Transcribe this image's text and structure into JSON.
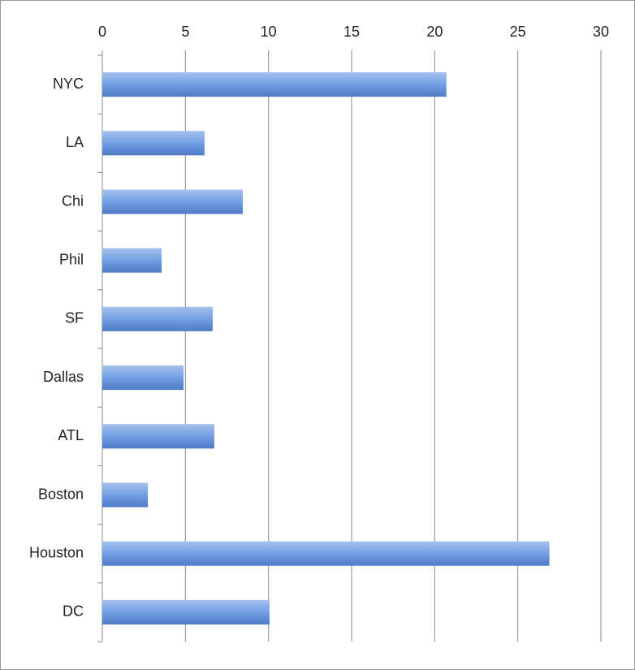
{
  "chart_data": {
    "type": "bar",
    "orientation": "horizontal",
    "categories": [
      "NYC",
      "LA",
      "Chi",
      "Phil",
      "SF",
      "Dallas",
      "ATL",
      "Boston",
      "Houston",
      "DC"
    ],
    "values": [
      20.7,
      6.15,
      8.45,
      3.57,
      6.64,
      4.89,
      6.74,
      2.74,
      26.9,
      10.06
    ],
    "color": "#5a8ee0",
    "xlim": [
      0,
      30
    ],
    "xticks": [
      0,
      5,
      10,
      15,
      20,
      25,
      30
    ],
    "grid": true
  }
}
